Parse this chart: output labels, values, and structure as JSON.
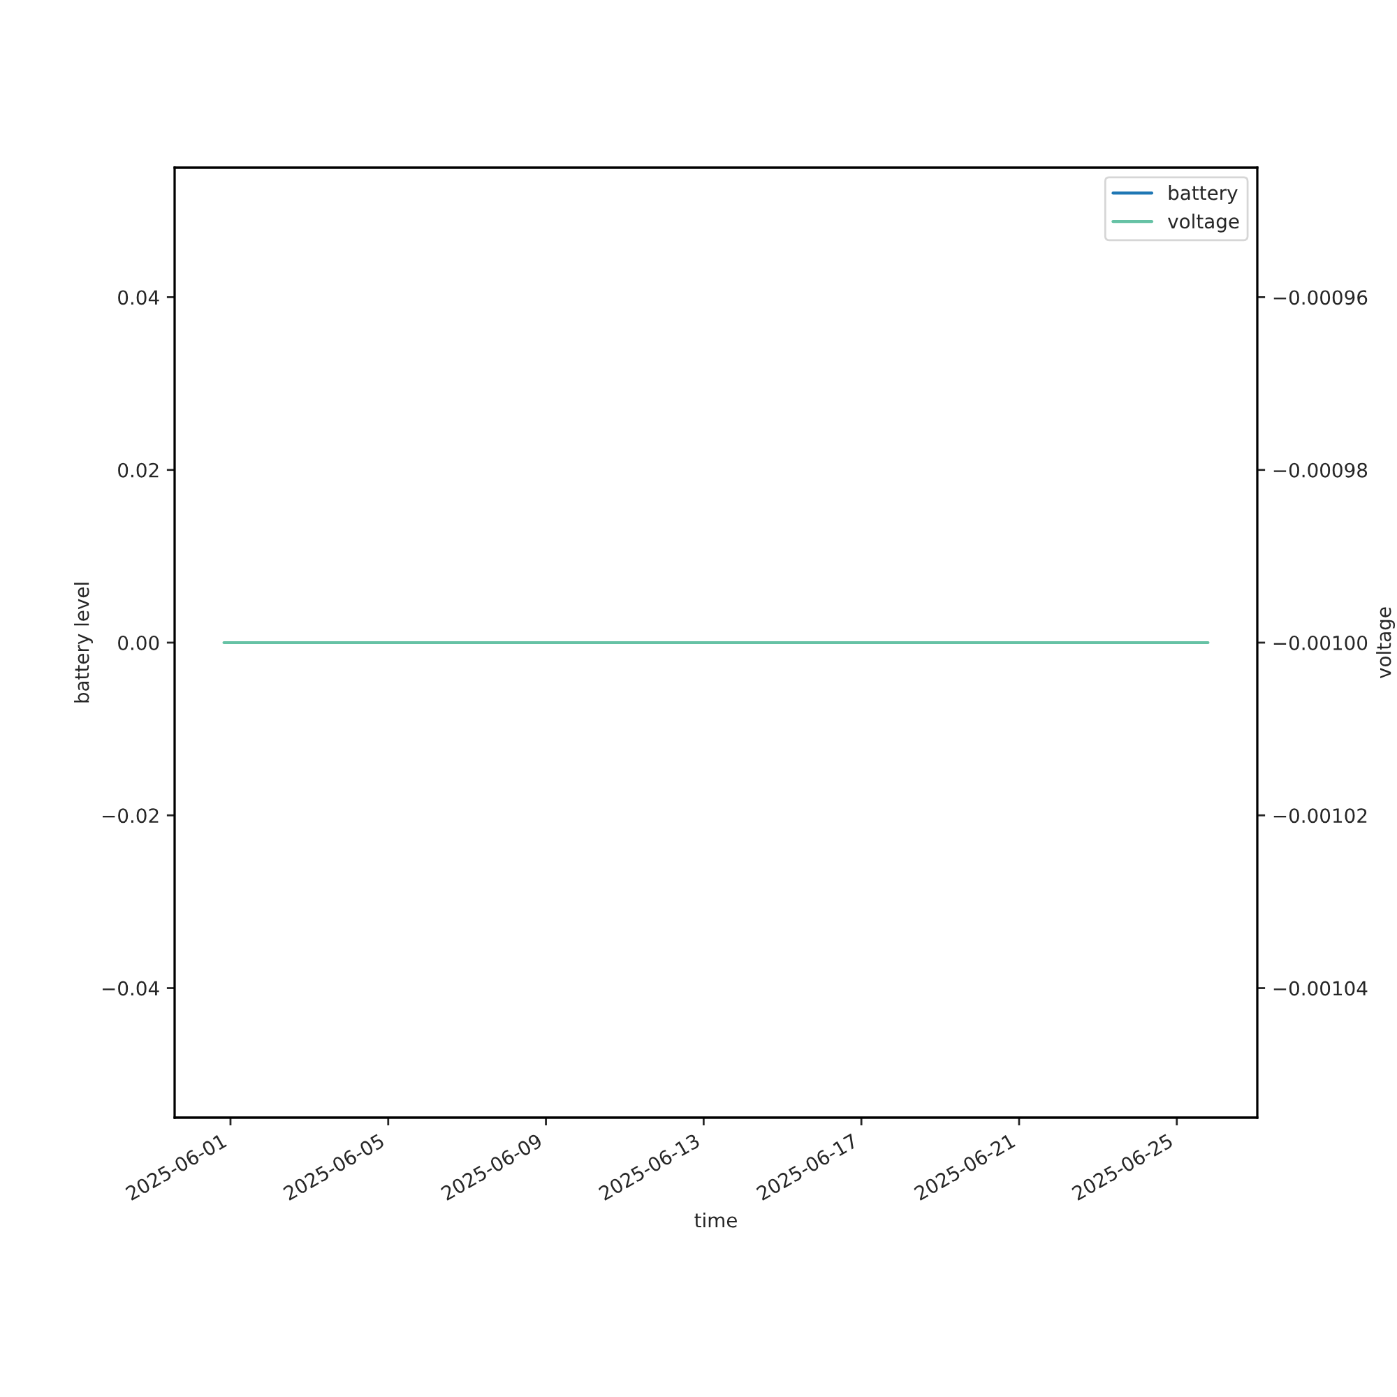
{
  "chart_data": {
    "type": "line",
    "xlabel": "time",
    "ylabel": "battery level",
    "y2label": "voltage",
    "x": [
      "2025-05-31T20:00",
      "2025-06-25T19:00"
    ],
    "series": [
      {
        "name": "battery",
        "color": "#1f77b4",
        "values": [
          null,
          null
        ]
      },
      {
        "name": "voltage",
        "color": "#66c2a5",
        "values": [
          -0.001,
          -0.001
        ],
        "axis": "y2"
      }
    ],
    "xlim": [
      "2025-05-30T14:00",
      "2025-06-27T01:00"
    ],
    "xticks": [
      "2025-06-01",
      "2025-06-05",
      "2025-06-09",
      "2025-06-13",
      "2025-06-17",
      "2025-06-21",
      "2025-06-25"
    ],
    "ylim": [
      -0.055,
      0.055
    ],
    "yticks": [
      {
        "value": -0.04,
        "label": "−0.04"
      },
      {
        "value": -0.02,
        "label": "−0.02"
      },
      {
        "value": 0,
        "label": "0.00"
      },
      {
        "value": 0.02,
        "label": "0.02"
      },
      {
        "value": 0.04,
        "label": "0.04"
      }
    ],
    "y2lim": [
      -0.001055,
      -0.000945
    ],
    "y2ticks": [
      {
        "value": -0.00104,
        "label": "−0.00104"
      },
      {
        "value": -0.00102,
        "label": "−0.00102"
      },
      {
        "value": -0.001,
        "label": "−0.00100"
      },
      {
        "value": -0.00098,
        "label": "−0.00098"
      },
      {
        "value": -0.00096,
        "label": "−0.00096"
      }
    ],
    "legend": "top right",
    "line_style": "solid"
  }
}
